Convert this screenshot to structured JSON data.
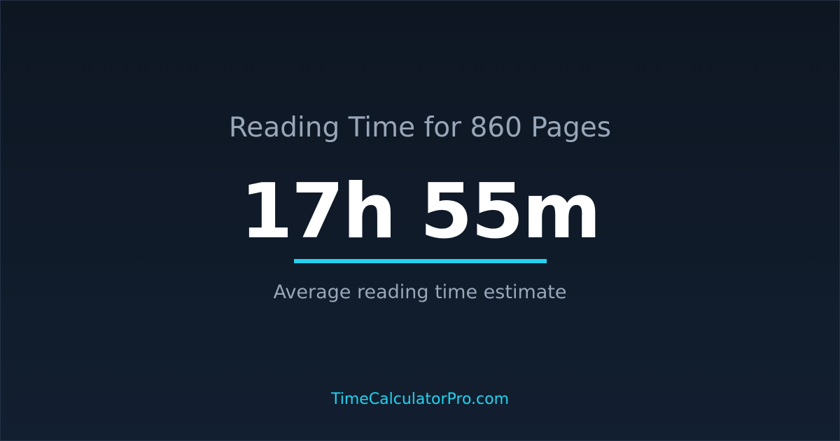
{
  "title": "Reading Time for 860 Pages",
  "value": "17h 55m",
  "subtitle": "Average reading time estimate",
  "site": "TimeCalculatorPro.com",
  "colors": {
    "accent": "#22d3ee",
    "background": "#0e1622",
    "muted_text": "#98a6b8"
  }
}
